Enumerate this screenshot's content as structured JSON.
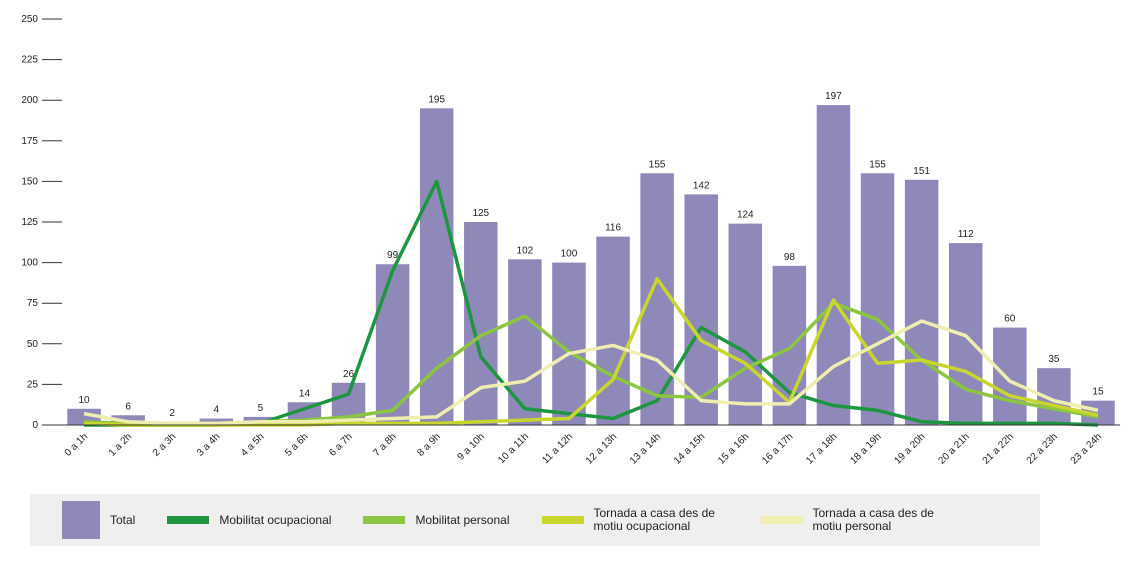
{
  "chart_data": {
    "type": "bar",
    "categories": [
      "0 a 1h",
      "1 a 2h",
      "2 a 3h",
      "3 a 4h",
      "4 a 5h",
      "5 a 6h",
      "6 a 7h",
      "7 a 8h",
      "8 a 9h",
      "9 a 10h",
      "10 a 11h",
      "11 a 12h",
      "12 a 13h",
      "13 a 14h",
      "14 a 15h",
      "15 a 16h",
      "16 a 17h",
      "17 a 18h",
      "18 a 19h",
      "19 a 20h",
      "20 a 21h",
      "21 a 22h",
      "22 a 23h",
      "23 a 24h"
    ],
    "series": [
      {
        "name": "Total",
        "type": "bar",
        "color": "#8f89b9",
        "values": [
          10,
          6,
          2,
          4,
          5,
          14,
          26,
          99,
          195,
          125,
          102,
          100,
          116,
          155,
          142,
          124,
          98,
          197,
          155,
          151,
          112,
          60,
          35,
          15
        ]
      },
      {
        "name": "Mobilitat ocupacional",
        "type": "line",
        "color": "#1e9640",
        "values": [
          0,
          0,
          0,
          0,
          1,
          10,
          19,
          95,
          150,
          42,
          10,
          7,
          4,
          15,
          60,
          45,
          20,
          12,
          9,
          2,
          1,
          1,
          1,
          0
        ]
      },
      {
        "name": "Mobilitat personal",
        "type": "line",
        "color": "#8cc540",
        "values": [
          2,
          1,
          1,
          1,
          2,
          3,
          5,
          9,
          35,
          55,
          67,
          45,
          30,
          18,
          17,
          35,
          47,
          75,
          65,
          40,
          22,
          15,
          10,
          5
        ]
      },
      {
        "name": "Tornada a casa des de motiu ocupacional",
        "type": "line",
        "color": "#c9d62e",
        "values": [
          1,
          0,
          0,
          0,
          0,
          0,
          1,
          1,
          1,
          2,
          3,
          4,
          28,
          90,
          52,
          38,
          14,
          77,
          38,
          40,
          33,
          18,
          12,
          6
        ]
      },
      {
        "name": "Tornada a casa des de motiu personal",
        "type": "line",
        "color": "#efedb0",
        "values": [
          7,
          2,
          1,
          1,
          2,
          2,
          3,
          4,
          5,
          23,
          27,
          44,
          49,
          40,
          15,
          13,
          13,
          36,
          50,
          64,
          55,
          27,
          15,
          9
        ]
      }
    ],
    "ylim": [
      0,
      250
    ],
    "yticks": [
      0,
      25,
      50,
      75,
      100,
      125,
      150,
      175,
      200,
      225,
      250
    ],
    "grid": false
  }
}
